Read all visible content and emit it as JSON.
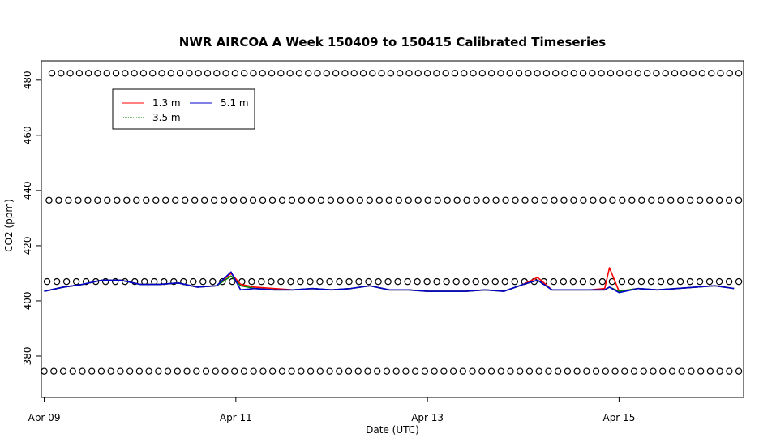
{
  "chart_data": {
    "type": "line",
    "title": "NWR AIRCOA A  Week 150409 to 150415  Calibrated Timeseries",
    "xlabel": "Date (UTC)",
    "ylabel": "CO2 (ppm)",
    "xlim": [
      -0.03,
      7.3
    ],
    "ylim": [
      365,
      487
    ],
    "x_unit": "days since Apr 09 00:00 UTC",
    "x_ticks": [
      {
        "value": 0,
        "label": "Apr 09"
      },
      {
        "value": 2,
        "label": "Apr 11"
      },
      {
        "value": 4,
        "label": "Apr 13"
      },
      {
        "value": 6,
        "label": "Apr 15"
      }
    ],
    "y_ticks": [
      380,
      400,
      420,
      440,
      460,
      480
    ],
    "grid": false,
    "legend": {
      "position": "top-left",
      "entries": [
        {
          "name": "1.3 m",
          "color": "#ff0000"
        },
        {
          "name": "5.1 m",
          "color": "#0000cc"
        },
        {
          "name": "3.5 m",
          "color": "#008000"
        }
      ]
    },
    "series": [
      {
        "name": "1.3 m",
        "color": "#ff0000",
        "x": [
          0.0,
          0.2,
          0.4,
          0.6,
          0.8,
          1.0,
          1.2,
          1.4,
          1.6,
          1.8,
          1.95,
          2.05,
          2.2,
          2.4,
          2.6,
          2.8,
          3.0,
          3.2,
          3.4,
          3.6,
          3.8,
          4.0,
          4.2,
          4.4,
          4.6,
          4.8,
          5.0,
          5.15,
          5.3,
          5.5,
          5.7,
          5.85,
          5.9,
          6.0,
          6.2,
          6.4,
          6.6,
          6.8,
          7.0,
          7.2
        ],
        "y": [
          403.5,
          405.0,
          406.0,
          407.5,
          407.5,
          406.0,
          406.0,
          406.5,
          405.0,
          405.5,
          410.0,
          406.0,
          405.0,
          404.5,
          404.0,
          404.5,
          404.0,
          404.5,
          405.5,
          404.0,
          404.0,
          403.5,
          403.5,
          403.5,
          404.0,
          403.5,
          406.0,
          408.5,
          404.0,
          404.0,
          404.0,
          404.5,
          412.0,
          403.5,
          404.5,
          404.0,
          404.5,
          405.0,
          405.5,
          404.5
        ]
      },
      {
        "name": "3.5 m",
        "color": "#008000",
        "x": [
          0.0,
          0.2,
          0.4,
          0.6,
          0.8,
          1.0,
          1.2,
          1.4,
          1.6,
          1.8,
          1.95,
          2.05,
          2.2,
          2.4,
          2.6,
          2.8,
          3.0,
          3.2,
          3.4,
          3.6,
          3.8,
          4.0,
          4.2,
          4.4,
          4.6,
          4.8,
          5.0,
          5.15,
          5.3,
          5.5,
          5.7,
          5.85,
          5.9,
          6.0,
          6.2,
          6.4,
          6.6,
          6.8,
          7.0,
          7.2
        ],
        "y": [
          403.5,
          405.0,
          406.0,
          407.5,
          407.5,
          406.0,
          406.0,
          406.5,
          405.0,
          405.5,
          409.0,
          405.5,
          404.5,
          404.0,
          404.0,
          404.5,
          404.0,
          404.5,
          405.5,
          404.0,
          404.0,
          403.5,
          403.5,
          403.5,
          404.0,
          403.5,
          406.0,
          407.5,
          404.0,
          404.0,
          404.0,
          404.0,
          405.0,
          403.5,
          404.5,
          404.0,
          404.5,
          405.0,
          405.5,
          404.5
        ]
      },
      {
        "name": "5.1 m",
        "color": "#0000cc",
        "x": [
          0.0,
          0.2,
          0.4,
          0.6,
          0.8,
          1.0,
          1.2,
          1.4,
          1.6,
          1.8,
          1.95,
          2.05,
          2.2,
          2.4,
          2.6,
          2.8,
          3.0,
          3.2,
          3.4,
          3.6,
          3.8,
          4.0,
          4.2,
          4.4,
          4.6,
          4.8,
          5.0,
          5.15,
          5.3,
          5.5,
          5.7,
          5.85,
          5.9,
          6.0,
          6.2,
          6.4,
          6.6,
          6.8,
          7.0,
          7.2
        ],
        "y": [
          403.5,
          405.0,
          406.0,
          407.5,
          407.5,
          406.0,
          406.0,
          406.5,
          405.0,
          405.5,
          410.5,
          404.0,
          404.5,
          404.0,
          404.0,
          404.5,
          404.0,
          404.5,
          405.5,
          404.0,
          404.0,
          403.5,
          403.5,
          403.5,
          404.0,
          403.5,
          406.0,
          407.5,
          404.0,
          404.0,
          404.0,
          404.0,
          405.0,
          403.0,
          404.5,
          404.0,
          404.5,
          405.0,
          405.5,
          404.5
        ]
      }
    ],
    "reference_points": {
      "marker": "open-circle",
      "color": "#000000",
      "series": [
        {
          "y": 482.5,
          "x_start": 0.08,
          "x_end": 7.25,
          "count": 76
        },
        {
          "y": 436.5,
          "x_start": 0.05,
          "x_end": 7.25,
          "count": 72
        },
        {
          "y": 407.0,
          "x_start": 0.03,
          "x_end": 7.25,
          "count": 72
        },
        {
          "y": 374.5,
          "x_start": 0.0,
          "x_end": 7.25,
          "count": 74
        }
      ]
    }
  }
}
